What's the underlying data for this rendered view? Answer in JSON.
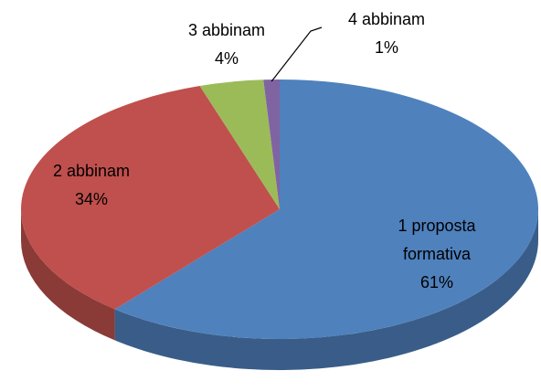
{
  "chart_data": {
    "type": "pie",
    "categories": [
      "1 proposta formativa",
      "2 abbinam",
      "3 abbinam",
      "4 abbinam"
    ],
    "values": [
      61,
      34,
      4,
      1
    ],
    "value_labels": [
      "61%",
      "34%",
      "4%",
      "1%"
    ],
    "colors": [
      "#4f81bd",
      "#c0504d",
      "#9bbb59",
      "#8064a2"
    ]
  }
}
